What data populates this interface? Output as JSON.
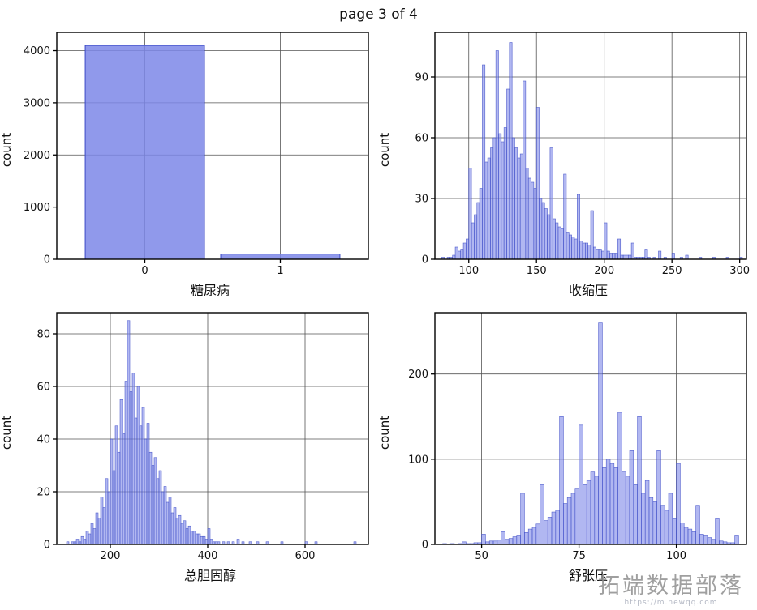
{
  "page": {
    "title": "page 3 of 4"
  },
  "watermark": {
    "text": "拓端数据部落",
    "subtext": "https://m.newqq.com"
  },
  "colors": {
    "bar_fill": "#7d87e8",
    "bar_stroke": "#3a49c6",
    "grid": "#555555"
  },
  "chart_data": [
    {
      "type": "bar",
      "title": "",
      "xlabel": "糖尿病",
      "ylabel": "count",
      "categories": [
        "0",
        "1"
      ],
      "values": [
        4100,
        100
      ],
      "xlim": [
        -0.65,
        1.65
      ],
      "yticks": [
        0,
        1000,
        2000,
        3000,
        4000
      ],
      "ylim": [
        0,
        4350
      ],
      "grid": true,
      "legend": "none"
    },
    {
      "type": "histogram",
      "title": "",
      "xlabel": "收缩压",
      "ylabel": "count",
      "xlim": [
        75,
        305
      ],
      "xticks": [
        100,
        150,
        200,
        250,
        300
      ],
      "yticks": [
        0,
        30,
        60,
        90
      ],
      "ylim": [
        0,
        112
      ],
      "grid": true,
      "legend": "none",
      "bins": {
        "start": 80,
        "width": 2,
        "counts": [
          1,
          0,
          1,
          1,
          2,
          6,
          4,
          5,
          8,
          10,
          45,
          18,
          22,
          28,
          35,
          96,
          48,
          50,
          55,
          60,
          103,
          62,
          58,
          65,
          84,
          107,
          60,
          55,
          50,
          52,
          88,
          45,
          40,
          38,
          35,
          75,
          30,
          28,
          25,
          22,
          55,
          20,
          18,
          16,
          15,
          42,
          13,
          12,
          11,
          10,
          32,
          9,
          8,
          8,
          7,
          24,
          6,
          5,
          5,
          4,
          18,
          4,
          3,
          3,
          3,
          10,
          2,
          2,
          2,
          2,
          8,
          1,
          1,
          1,
          1,
          5,
          1,
          0,
          1,
          0,
          4,
          0,
          1,
          0,
          0,
          3,
          0,
          0,
          1,
          0,
          2,
          0,
          0,
          0,
          0,
          1,
          0,
          0,
          0,
          0,
          1,
          0,
          0,
          0,
          0,
          1,
          0,
          0,
          0,
          0,
          1
        ]
      }
    },
    {
      "type": "histogram",
      "title": "",
      "xlabel": "总胆固醇",
      "ylabel": "count",
      "xlim": [
        90,
        730
      ],
      "xticks": [
        200,
        400,
        600
      ],
      "yticks": [
        0,
        20,
        40,
        60,
        80
      ],
      "ylim": [
        0,
        88
      ],
      "grid": true,
      "legend": "none",
      "bins": {
        "start": 100,
        "width": 5,
        "counts": [
          0,
          0,
          1,
          0,
          1,
          1,
          2,
          1,
          3,
          2,
          5,
          4,
          8,
          6,
          12,
          10,
          18,
          14,
          25,
          20,
          40,
          28,
          45,
          35,
          55,
          42,
          62,
          85,
          58,
          65,
          48,
          60,
          45,
          52,
          40,
          46,
          35,
          30,
          33,
          25,
          28,
          20,
          22,
          16,
          18,
          12,
          14,
          10,
          11,
          8,
          9,
          6,
          7,
          5,
          5,
          4,
          4,
          3,
          3,
          2,
          6,
          2,
          1,
          1,
          1,
          0,
          1,
          0,
          1,
          0,
          1,
          0,
          2,
          0,
          1,
          0,
          0,
          1,
          0,
          0,
          1,
          0,
          0,
          0,
          1,
          0,
          0,
          0,
          0,
          0,
          1,
          0,
          0,
          0,
          0,
          0,
          0,
          0,
          0,
          0,
          1,
          0,
          0,
          0,
          1,
          0,
          0,
          0,
          0,
          0,
          0,
          0,
          0,
          0,
          0,
          0,
          0,
          0,
          0,
          0,
          1
        ]
      }
    },
    {
      "type": "histogram",
      "title": "",
      "xlabel": "舒张压",
      "ylabel": "count",
      "xlim": [
        38,
        118
      ],
      "xticks": [
        50,
        75,
        100
      ],
      "yticks": [
        0,
        100,
        200
      ],
      "ylim": [
        0,
        272
      ],
      "grid": true,
      "legend": "none",
      "bins": {
        "start": 40,
        "width": 1,
        "counts": [
          1,
          0,
          1,
          0,
          1,
          3,
          1,
          1,
          2,
          2,
          12,
          3,
          4,
          4,
          5,
          15,
          6,
          7,
          9,
          10,
          60,
          14,
          18,
          20,
          24,
          70,
          28,
          32,
          38,
          40,
          150,
          48,
          55,
          60,
          65,
          140,
          70,
          75,
          85,
          80,
          260,
          90,
          100,
          95,
          90,
          155,
          85,
          80,
          110,
          70,
          150,
          60,
          75,
          55,
          50,
          110,
          45,
          40,
          60,
          30,
          95,
          25,
          20,
          18,
          15,
          45,
          12,
          10,
          8,
          6,
          30,
          4,
          3,
          2,
          2,
          10
        ]
      }
    }
  ]
}
